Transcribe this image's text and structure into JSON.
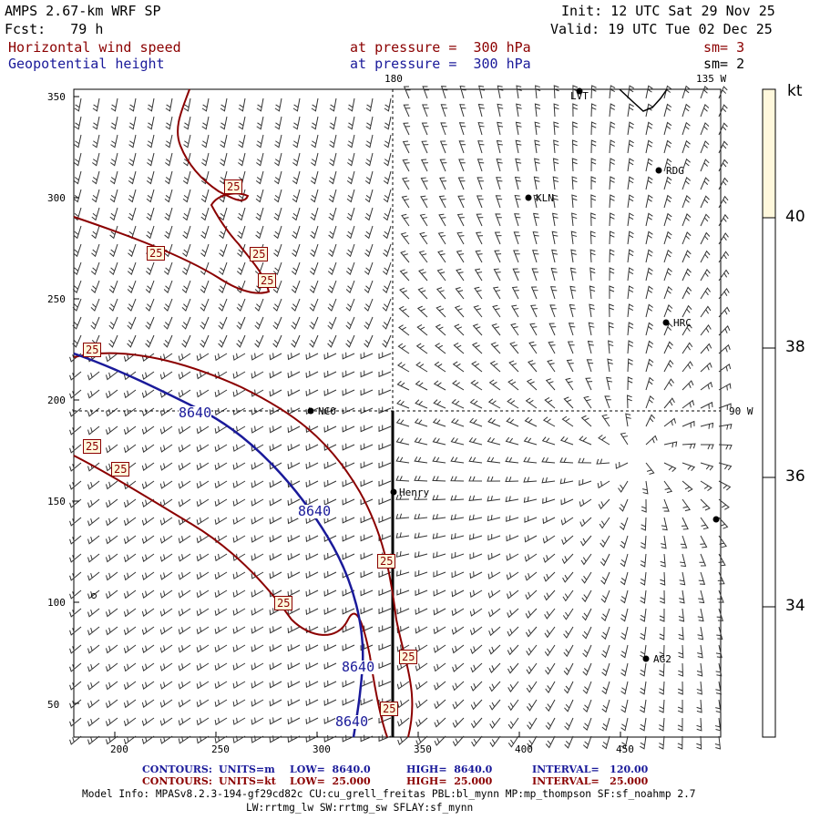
{
  "header": {
    "model": "AMPS 2.67-km WRF SP",
    "forecast": "Fcst:   79 h",
    "init": "Init: 12 UTC Sat 29 Nov 25",
    "valid": "Valid: 19 UTC Tue 02 Dec 25",
    "field1": {
      "name": "Horizontal wind speed",
      "level": "at pressure =  300 hPa",
      "sm": "sm= 3"
    },
    "field2": {
      "name": "Geopotential height",
      "level": "at pressure =  300 hPa",
      "sm": "sm= 2"
    }
  },
  "map": {
    "xticks": [
      "200",
      "250",
      "300",
      "350",
      "400",
      "450"
    ],
    "yticks": [
      "350",
      "300",
      "250",
      "200",
      "150",
      "100",
      "50"
    ],
    "meridian_labels": {
      "lon180": "180",
      "lon135w": "135 W",
      "lon90w": "90 W"
    },
    "stations": [
      {
        "id": "LVT"
      },
      {
        "id": "RDG"
      },
      {
        "id": "KLN"
      },
      {
        "id": "HRC"
      },
      {
        "id": "NCO"
      },
      {
        "id": "Henry"
      },
      {
        "id": "AG2"
      },
      {
        "id": "unlabeled-east"
      }
    ],
    "contour_labels": {
      "wind": "25",
      "height": "8640"
    }
  },
  "colorbar": {
    "unit": "kt",
    "ticks": [
      "40",
      "38",
      "36",
      "34"
    ],
    "fill_top_color": "#fff8dc"
  },
  "footer": {
    "row1": {
      "label": "CONTOURS:",
      "units": "UNITS=m",
      "low": "LOW=  8640.0",
      "high": "HIGH=  8640.0",
      "interval": "INTERVAL=   120.00"
    },
    "row2": {
      "label": "CONTOURS:",
      "units": "UNITS=kt",
      "low": "LOW=  25.000",
      "high": "HIGH=  25.000",
      "interval": "INTERVAL=   25.000"
    },
    "info1": "Model Info: MPASv8.2.3-194-gf29cd82c CU:cu_grell_freitas PBL:bl_mynn MP:mp_thompson SF:sf_noahmp 2.7",
    "info2": "LW:rrtmg_lw SW:rrtmg_sw SFLAY:sf_mynn"
  },
  "colors": {
    "wind_contour": "#8b0000",
    "height_contour": "#1a1a9a",
    "label_box_bg": "#fff8dc"
  }
}
